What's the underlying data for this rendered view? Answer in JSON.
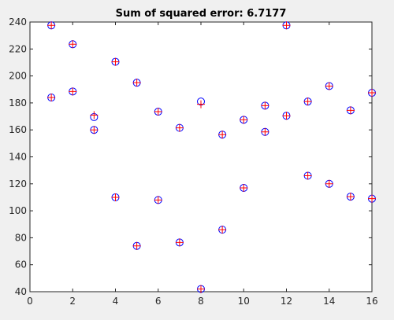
{
  "chart_data": {
    "type": "scatter",
    "title": "Sum of squared error: 6.7177",
    "xlabel": "",
    "ylabel": "",
    "xlim": [
      0,
      16
    ],
    "ylim": [
      40,
      240
    ],
    "xticks": [
      0,
      2,
      4,
      6,
      8,
      10,
      12,
      14,
      16
    ],
    "yticks": [
      40,
      60,
      80,
      100,
      120,
      140,
      160,
      180,
      200,
      220,
      240
    ],
    "grid": false,
    "legend": "none",
    "series": [
      {
        "marker": "circle",
        "color": "#0000ff",
        "points": [
          [
            1,
            184
          ],
          [
            1,
            237.5
          ],
          [
            2,
            188.5
          ],
          [
            2,
            223.5
          ],
          [
            3,
            160
          ],
          [
            3,
            169.5
          ],
          [
            4,
            210.5
          ],
          [
            4,
            110
          ],
          [
            5,
            195
          ],
          [
            5,
            74
          ],
          [
            6,
            173.5
          ],
          [
            6,
            108
          ],
          [
            7,
            161.5
          ],
          [
            7,
            76.5
          ],
          [
            8,
            181
          ],
          [
            8,
            42
          ],
          [
            9,
            156.5
          ],
          [
            9,
            86
          ],
          [
            10,
            167.5
          ],
          [
            10,
            117
          ],
          [
            11,
            178
          ],
          [
            11,
            158.5
          ],
          [
            12,
            237.5
          ],
          [
            12,
            170.5
          ],
          [
            13,
            181
          ],
          [
            13,
            126
          ],
          [
            14,
            192.5
          ],
          [
            14,
            120
          ],
          [
            15,
            174.5
          ],
          [
            15,
            110.5
          ],
          [
            16,
            187.5
          ],
          [
            16,
            109
          ]
        ]
      },
      {
        "marker": "plus",
        "color": "#ff0000",
        "points": [
          [
            1,
            184
          ],
          [
            1,
            237.5
          ],
          [
            2,
            188.5
          ],
          [
            2,
            223.5
          ],
          [
            3,
            160
          ],
          [
            3,
            171
          ],
          [
            4,
            210.5
          ],
          [
            4,
            110
          ],
          [
            5,
            195
          ],
          [
            5,
            74
          ],
          [
            6,
            173.5
          ],
          [
            6,
            108
          ],
          [
            7,
            161.5
          ],
          [
            7,
            76.5
          ],
          [
            8,
            179
          ],
          [
            8,
            42
          ],
          [
            9,
            156.5
          ],
          [
            9,
            86
          ],
          [
            10,
            167.5
          ],
          [
            10,
            117
          ],
          [
            11,
            178
          ],
          [
            11,
            158.5
          ],
          [
            12,
            237.5
          ],
          [
            12,
            170.5
          ],
          [
            13,
            181
          ],
          [
            13,
            126
          ],
          [
            14,
            192.5
          ],
          [
            14,
            120
          ],
          [
            15,
            174.5
          ],
          [
            15,
            110.5
          ],
          [
            16,
            187.5
          ],
          [
            16,
            109
          ]
        ]
      }
    ]
  }
}
